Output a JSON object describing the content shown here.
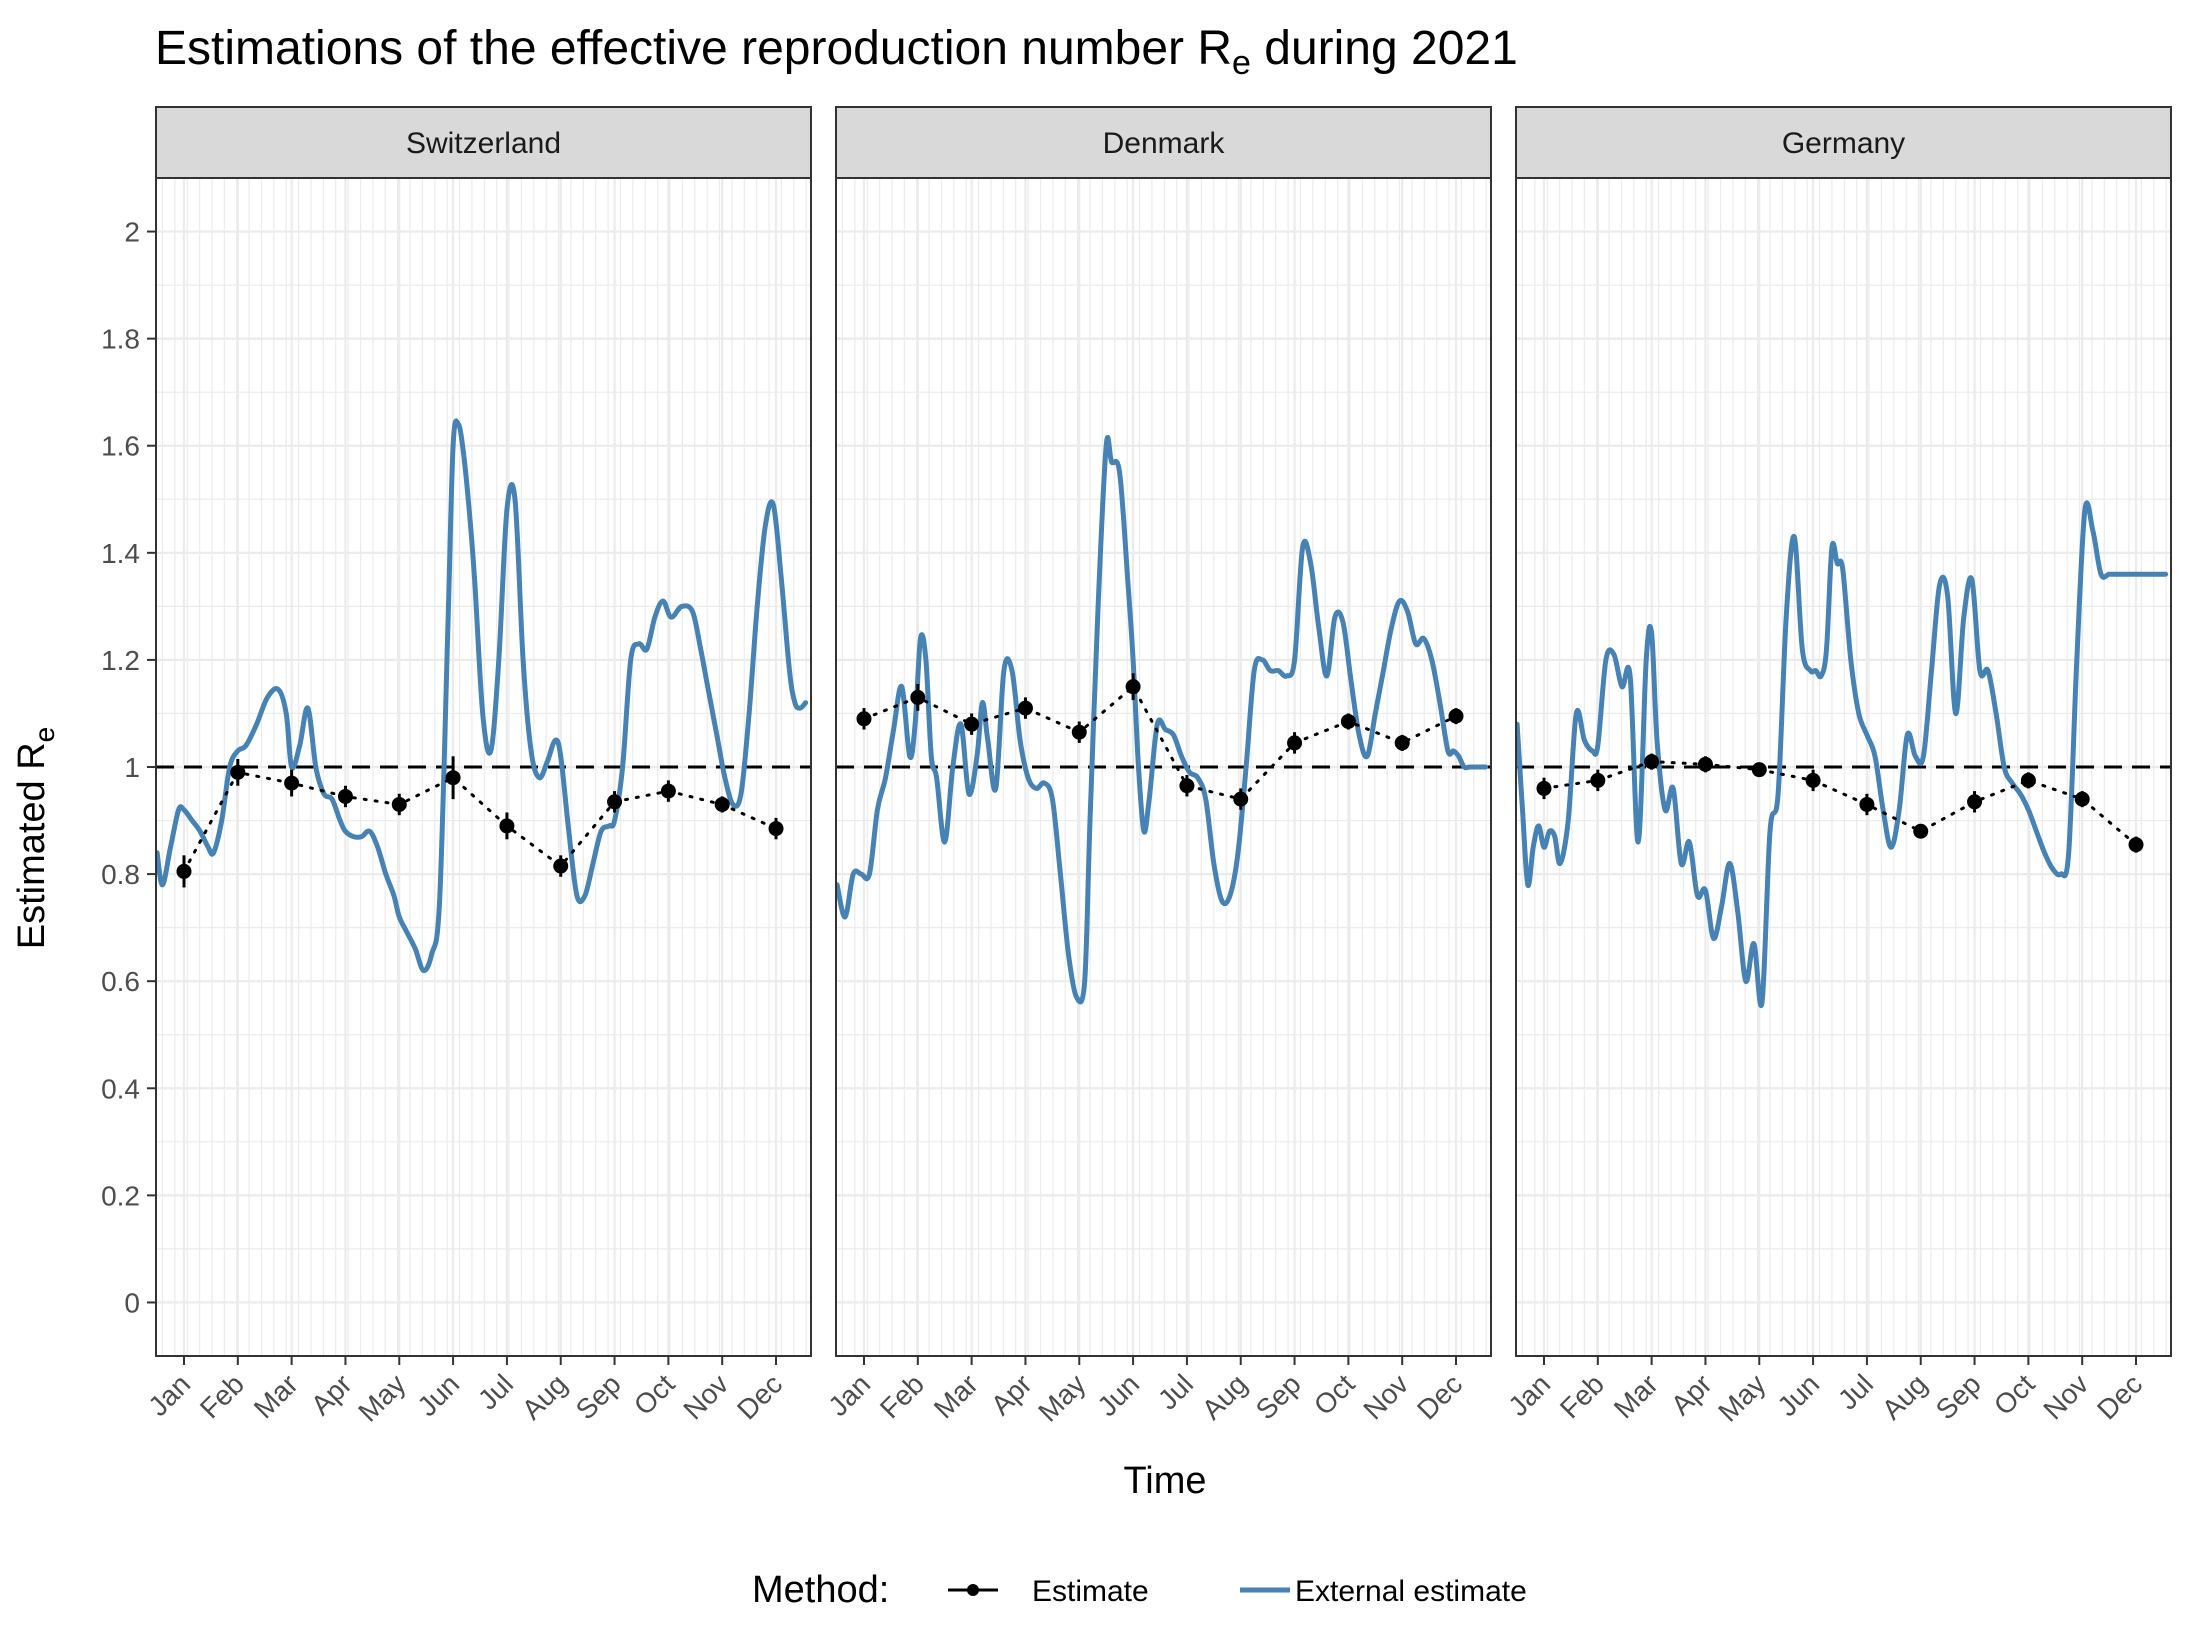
{
  "title_main": "Estimations of the effective reproduction number R",
  "title_sub": "e",
  "title_tail": " during 2021",
  "x_axis_title": "Time",
  "y_axis_title_main": "Estimated R",
  "y_axis_title_sub": "e",
  "legend": {
    "title": "Method:",
    "items": [
      {
        "label": "Estimate",
        "color": "#000000"
      },
      {
        "label": "External estimate",
        "color": "#4682B4"
      }
    ]
  },
  "colors": {
    "estimate": "#000000",
    "external": "#4682B4",
    "strip_fill": "#D9D9D9",
    "grid": "#EBEBEB",
    "reference": "#000000"
  },
  "chart_data": {
    "type": "line",
    "facets": [
      "Switzerland",
      "Denmark",
      "Germany"
    ],
    "x_tick_labels": [
      "Jan",
      "Feb",
      "Mar",
      "Apr",
      "May",
      "Jun",
      "Jul",
      "Aug",
      "Sep",
      "Oct",
      "Nov",
      "Dec"
    ],
    "y_ticks": [
      0,
      0.2,
      0.4,
      0.6,
      0.8,
      1,
      1.2,
      1.4,
      1.6,
      1.8,
      2
    ],
    "y_tick_labels": [
      "0",
      "0.2",
      "0.4",
      "0.6",
      "0.8",
      "1",
      "1.2",
      "1.4",
      "1.6",
      "1.8",
      "2"
    ],
    "ylim": [
      -0.1,
      2.1
    ],
    "xlim_months": [
      0.48,
      12.65
    ],
    "reference_line": 1,
    "grid": true,
    "legend_position": "bottom",
    "series": [
      {
        "name": "Estimate",
        "facet": "Switzerland",
        "style": "dotted line with points and error bars",
        "x": [
          1,
          2,
          3,
          4,
          5,
          6,
          7,
          8,
          9,
          10,
          11,
          12
        ],
        "y": [
          0.805,
          0.99,
          0.97,
          0.945,
          0.93,
          0.98,
          0.89,
          0.815,
          0.935,
          0.955,
          0.93,
          0.885
        ],
        "lower": [
          0.775,
          0.965,
          0.945,
          0.925,
          0.91,
          0.94,
          0.865,
          0.795,
          0.915,
          0.935,
          0.915,
          0.865
        ],
        "upper": [
          0.835,
          1.015,
          0.995,
          0.965,
          0.95,
          1.02,
          0.915,
          0.835,
          0.955,
          0.975,
          0.945,
          0.905
        ]
      },
      {
        "name": "External estimate",
        "facet": "Switzerland",
        "x": [
          0.5,
          0.6,
          0.75,
          0.9,
          1.0,
          1.15,
          1.3,
          1.45,
          1.55,
          1.7,
          1.85,
          2.0,
          2.15,
          2.35,
          2.55,
          2.75,
          2.9,
          3.0,
          3.15,
          3.3,
          3.45,
          3.6,
          3.75,
          3.9,
          4.0,
          4.15,
          4.3,
          4.45,
          4.6,
          4.75,
          4.9,
          5.0,
          5.15,
          5.3,
          5.45,
          5.6,
          5.75,
          5.9,
          6.0,
          6.1,
          6.2,
          6.3,
          6.4,
          6.55,
          6.7,
          6.85,
          7.0,
          7.15,
          7.3,
          7.45,
          7.6,
          7.75,
          7.9,
          8.0,
          8.15,
          8.3,
          8.45,
          8.6,
          8.75,
          8.9,
          9.0,
          9.15,
          9.3,
          9.45,
          9.6,
          9.75,
          9.9,
          10.05,
          10.25,
          10.45,
          10.6,
          10.75,
          10.9,
          11.05,
          11.2,
          11.35,
          11.5,
          11.65,
          11.8,
          11.95,
          12.1,
          12.25,
          12.35,
          12.45,
          12.55
        ],
        "y": [
          0.84,
          0.78,
          0.85,
          0.92,
          0.92,
          0.9,
          0.88,
          0.85,
          0.84,
          0.9,
          1.0,
          1.03,
          1.04,
          1.08,
          1.13,
          1.145,
          1.1,
          1.0,
          1.04,
          1.11,
          1.0,
          0.95,
          0.94,
          0.9,
          0.88,
          0.87,
          0.87,
          0.88,
          0.85,
          0.8,
          0.76,
          0.72,
          0.69,
          0.66,
          0.62,
          0.65,
          0.75,
          1.25,
          1.6,
          1.64,
          1.58,
          1.48,
          1.35,
          1.1,
          1.03,
          1.2,
          1.48,
          1.5,
          1.2,
          1.03,
          0.98,
          1.01,
          1.05,
          1.02,
          0.88,
          0.76,
          0.76,
          0.82,
          0.88,
          0.89,
          0.9,
          1.0,
          1.2,
          1.23,
          1.22,
          1.28,
          1.31,
          1.28,
          1.3,
          1.29,
          1.22,
          1.14,
          1.06,
          0.98,
          0.93,
          0.95,
          1.1,
          1.3,
          1.45,
          1.49,
          1.35,
          1.18,
          1.12,
          1.11,
          1.12
        ]
      },
      {
        "name": "Estimate",
        "facet": "Denmark",
        "style": "dotted line with points and error bars",
        "x": [
          1,
          2,
          3,
          4,
          5,
          6,
          7,
          8,
          9,
          10,
          11,
          12
        ],
        "y": [
          1.09,
          1.13,
          1.08,
          1.11,
          1.065,
          1.15,
          0.965,
          0.94,
          1.045,
          1.085,
          1.045,
          1.095
        ],
        "lower": [
          1.07,
          1.105,
          1.06,
          1.09,
          1.045,
          1.125,
          0.945,
          0.92,
          1.025,
          1.07,
          1.03,
          1.08
        ],
        "upper": [
          1.11,
          1.155,
          1.1,
          1.13,
          1.085,
          1.175,
          0.985,
          0.96,
          1.065,
          1.1,
          1.06,
          1.11
        ]
      },
      {
        "name": "External estimate",
        "facet": "Denmark",
        "x": [
          0.5,
          0.65,
          0.8,
          0.95,
          1.1,
          1.25,
          1.4,
          1.55,
          1.7,
          1.85,
          1.95,
          2.05,
          2.15,
          2.25,
          2.35,
          2.5,
          2.65,
          2.8,
          2.95,
          3.1,
          3.2,
          3.3,
          3.45,
          3.6,
          3.75,
          3.9,
          4.05,
          4.2,
          4.35,
          4.5,
          4.65,
          4.8,
          4.95,
          5.1,
          5.2,
          5.35,
          5.5,
          5.6,
          5.75,
          5.9,
          6.0,
          6.1,
          6.2,
          6.3,
          6.45,
          6.6,
          6.75,
          6.9,
          7.05,
          7.2,
          7.35,
          7.5,
          7.65,
          7.8,
          7.95,
          8.1,
          8.25,
          8.4,
          8.55,
          8.7,
          8.85,
          9.0,
          9.15,
          9.3,
          9.45,
          9.6,
          9.75,
          9.9,
          10.05,
          10.2,
          10.35,
          10.5,
          10.65,
          10.8,
          10.95,
          11.1,
          11.25,
          11.4,
          11.55,
          11.7,
          11.85,
          11.95,
          12.05,
          12.15,
          12.25,
          12.35,
          12.45,
          12.55
        ],
        "y": [
          0.78,
          0.72,
          0.8,
          0.8,
          0.8,
          0.92,
          0.98,
          1.07,
          1.15,
          1.02,
          1.08,
          1.24,
          1.2,
          1.02,
          0.98,
          0.86,
          1.0,
          1.08,
          0.95,
          1.02,
          1.12,
          1.05,
          0.96,
          1.18,
          1.18,
          1.05,
          0.98,
          0.96,
          0.97,
          0.94,
          0.8,
          0.65,
          0.57,
          0.6,
          0.9,
          1.3,
          1.6,
          1.57,
          1.55,
          1.35,
          1.2,
          1.0,
          0.88,
          0.94,
          1.08,
          1.07,
          1.06,
          1.02,
          0.99,
          0.98,
          0.94,
          0.82,
          0.75,
          0.76,
          0.84,
          1.0,
          1.18,
          1.2,
          1.18,
          1.18,
          1.17,
          1.2,
          1.41,
          1.38,
          1.26,
          1.17,
          1.28,
          1.27,
          1.16,
          1.06,
          1.02,
          1.1,
          1.18,
          1.26,
          1.31,
          1.29,
          1.23,
          1.24,
          1.2,
          1.12,
          1.03,
          1.03,
          1.02,
          1.0,
          1.0,
          1.0,
          1.0,
          1.0
        ]
      },
      {
        "name": "Estimate",
        "facet": "Germany",
        "style": "dotted line with points and error bars",
        "x": [
          1,
          2,
          3,
          4,
          5,
          6,
          7,
          8,
          9,
          10,
          11,
          12
        ],
        "y": [
          0.96,
          0.975,
          1.01,
          1.005,
          0.995,
          0.975,
          0.93,
          0.88,
          0.935,
          0.975,
          0.94,
          0.855
        ],
        "lower": [
          0.94,
          0.955,
          0.995,
          0.99,
          0.985,
          0.955,
          0.91,
          0.87,
          0.915,
          0.96,
          0.925,
          0.84
        ],
        "upper": [
          0.98,
          0.995,
          1.025,
          1.02,
          1.005,
          0.995,
          0.95,
          0.89,
          0.955,
          0.99,
          0.955,
          0.87
        ]
      },
      {
        "name": "External estimate",
        "facet": "Germany",
        "x": [
          0.5,
          0.6,
          0.7,
          0.8,
          0.9,
          1.0,
          1.1,
          1.2,
          1.3,
          1.45,
          1.6,
          1.75,
          1.9,
          2.0,
          2.15,
          2.3,
          2.45,
          2.6,
          2.75,
          2.9,
          3.0,
          3.1,
          3.25,
          3.4,
          3.55,
          3.7,
          3.85,
          4.0,
          4.15,
          4.3,
          4.45,
          4.6,
          4.75,
          4.9,
          5.05,
          5.2,
          5.35,
          5.5,
          5.65,
          5.8,
          5.95,
          6.05,
          6.15,
          6.25,
          6.35,
          6.45,
          6.55,
          6.7,
          6.85,
          7.0,
          7.15,
          7.3,
          7.45,
          7.6,
          7.75,
          7.9,
          8.05,
          8.2,
          8.35,
          8.5,
          8.65,
          8.8,
          8.95,
          9.1,
          9.25,
          9.4,
          9.55,
          9.7,
          9.85,
          10.0,
          10.15,
          10.3,
          10.45,
          10.6,
          10.75,
          10.9,
          11.05,
          11.2,
          11.35,
          11.5,
          11.65,
          11.8,
          11.95,
          12.05,
          12.15,
          12.25,
          12.35,
          12.45,
          12.55
        ],
        "y": [
          1.08,
          0.92,
          0.78,
          0.85,
          0.89,
          0.85,
          0.88,
          0.87,
          0.82,
          0.9,
          1.1,
          1.05,
          1.03,
          1.04,
          1.2,
          1.21,
          1.15,
          1.17,
          0.86,
          1.2,
          1.25,
          1.05,
          0.92,
          0.96,
          0.82,
          0.86,
          0.76,
          0.77,
          0.68,
          0.74,
          0.82,
          0.73,
          0.6,
          0.67,
          0.56,
          0.88,
          0.95,
          1.28,
          1.43,
          1.22,
          1.18,
          1.18,
          1.17,
          1.22,
          1.41,
          1.38,
          1.37,
          1.2,
          1.1,
          1.06,
          1.02,
          0.92,
          0.85,
          0.92,
          1.06,
          1.02,
          1.02,
          1.18,
          1.34,
          1.32,
          1.1,
          1.28,
          1.35,
          1.18,
          1.18,
          1.1,
          1.0,
          0.97,
          0.95,
          0.92,
          0.88,
          0.84,
          0.81,
          0.8,
          0.84,
          1.2,
          1.48,
          1.44,
          1.36,
          1.36,
          1.36,
          1.36,
          1.36,
          1.36,
          1.36,
          1.36,
          1.36,
          1.36,
          1.36
        ]
      }
    ]
  }
}
